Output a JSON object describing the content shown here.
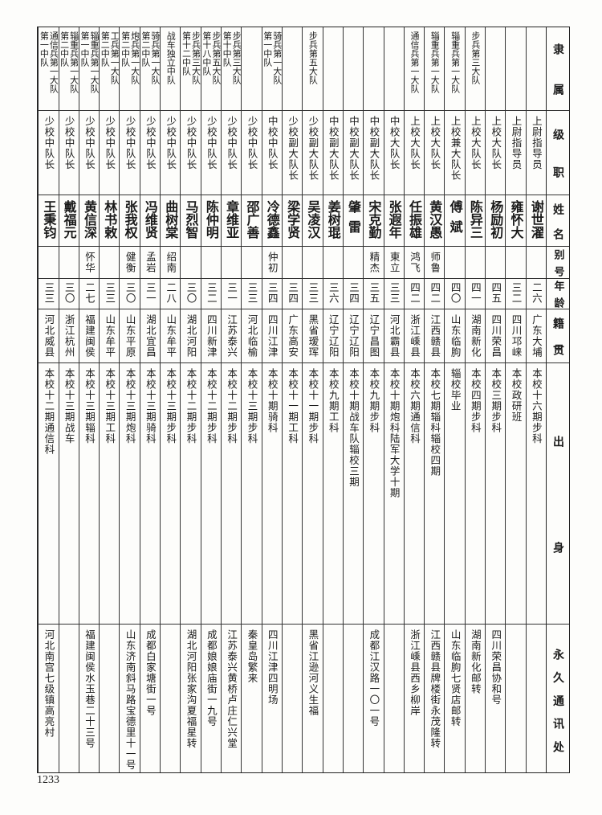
{
  "header": [
    "隶属",
    "级职",
    "姓名",
    "别号",
    "年龄",
    "籍贯",
    "出身",
    "永久通讯处"
  ],
  "records": [
    {
      "unit": [],
      "rank": "上尉指导员",
      "name": "谢世濯",
      "alias": "",
      "age": "二六",
      "native": "广东大埔",
      "education": "本校十六期步科",
      "address": ""
    },
    {
      "unit": [],
      "rank": "上尉指导员",
      "name": "雍怀大",
      "alias": "",
      "age": "三二",
      "native": "四川邛崃",
      "education": "本校政研班",
      "address": ""
    },
    {
      "unit": [],
      "rank": "上校大队长",
      "name": "杨励初",
      "alias": "",
      "age": "四五",
      "native": "四川荣昌",
      "education": "本校三期步科",
      "address": "四川荣昌协和号"
    },
    {
      "unit": [
        "步兵第三大队"
      ],
      "rank": "上校大队长",
      "name": "陈异三",
      "alias": "",
      "age": "四一",
      "native": "湖南新化",
      "education": "本校四期步科",
      "address": "湖南新化邮转"
    },
    {
      "unit": [
        "辎重兵第一大队"
      ],
      "rank": "上校兼大队长",
      "name": "傅斌",
      "alias": "",
      "age": "四〇",
      "native": "山东临朐",
      "education": "辎校毕业",
      "address": "山东临朐七贤店邮转"
    },
    {
      "unit": [
        "辎重兵第一大队"
      ],
      "rank": "上校大队长",
      "name": "黄汉愚",
      "alias": "师鲁",
      "age": "四二",
      "native": "江西赣县",
      "education": "本校七期辎科辎校四期",
      "address": "江西赣县牌楼街永茂隆转"
    },
    {
      "unit": [
        "通信兵第一大队"
      ],
      "rank": "上校大队长",
      "name": "任振雄",
      "alias": "鸿飞",
      "age": "四二",
      "native": "浙江嵊县",
      "education": "本校六期通信科",
      "address": "浙江嵊县西乡柳岸"
    },
    {
      "unit": [],
      "rank": "中校大队长",
      "name": "张遐年",
      "alias": "東立",
      "age": "三三",
      "native": "河北霸县",
      "education": "本校十期炮科陆军大学十期",
      "address": ""
    },
    {
      "unit": [],
      "rank": "中校副大队长",
      "name": "宋克勤",
      "alias": "精杰",
      "age": "三五",
      "native": "辽宁昌图",
      "education": "本校九期步科",
      "address": "成都江汉路一〇一号"
    },
    {
      "unit": [],
      "rank": "中校副大队长",
      "name": "肇雷",
      "alias": "",
      "age": "三四",
      "native": "辽宁辽阳",
      "education": "本校十期战车队辎校三期",
      "address": ""
    },
    {
      "unit": [],
      "rank": "中校副大队长",
      "name": "姜树琨",
      "alias": "",
      "age": "三六",
      "native": "辽宁辽阳",
      "education": "本校九期工科",
      "address": ""
    },
    {
      "unit": [
        "步兵第五大队"
      ],
      "rank": "少校副大队长",
      "name": "吴凌汉",
      "alias": "",
      "age": "三三",
      "native": "黑省瑷珲",
      "education": "本校十一期步科",
      "address": "黑省江逊河义生福"
    },
    {
      "unit": [],
      "rank": "少校副大队长",
      "name": "梁学贤",
      "alias": "",
      "age": "三四",
      "native": "广东高安",
      "education": "本校十一期工科",
      "address": ""
    },
    {
      "unit": [
        "骑兵第一大队",
        "第一中队"
      ],
      "rank": "中校中队长",
      "name": "冷德鑫",
      "alias": "仲初",
      "age": "三四",
      "native": "四川江津",
      "education": "本校十期骑科",
      "address": "四川江津四明场"
    },
    {
      "unit": [],
      "rank": "少校中队长",
      "name": "邵广善",
      "alias": "",
      "age": "三三",
      "native": "河北临榆",
      "education": "本校十三期步科",
      "address": "秦皇岛繁来"
    },
    {
      "unit": [
        "步兵第三大队",
        "第十中队"
      ],
      "rank": "少校中队长",
      "name": "章维亚",
      "alias": "",
      "age": "三一",
      "native": "江苏泰兴",
      "education": "本校十二期步科",
      "address": "江苏泰兴黄桥卢庄仁兴堂"
    },
    {
      "unit": [
        "步兵第五大队",
        "第十八中队"
      ],
      "rank": "少校中队长",
      "name": "陈仲明",
      "alias": "",
      "age": "三二",
      "native": "四川新津",
      "education": "本校十二期步科",
      "address": "成都娘娘庙街一九号"
    },
    {
      "unit": [
        "步兵第三大队",
        "第十二中队"
      ],
      "rank": "少校中队长",
      "name": "马烈智",
      "alias": "",
      "age": "三〇",
      "native": "湖北河阳",
      "education": "本校十二期步科",
      "address": "湖北河阳张家沟夏福星转"
    },
    {
      "unit": [
        "战车独立中队"
      ],
      "rank": "少校中队长",
      "name": "曲树棠",
      "alias": "绍南",
      "age": "二八",
      "native": "山东牟平",
      "education": "本校十三期步科",
      "address": ""
    },
    {
      "unit": [
        "骑兵第一大队",
        "第二中队"
      ],
      "rank": "少校中队长",
      "name": "冯维贤",
      "alias": "孟岩",
      "age": "三一",
      "native": "湖北宜昌",
      "education": "本校十三期骑科",
      "address": "成都白家塘街一号"
    },
    {
      "unit": [
        "炮兵第一大队",
        "第二中队"
      ],
      "rank": "少校中队长",
      "name": "张我权",
      "alias": "健衡",
      "age": "三〇",
      "native": "山东平原",
      "education": "本校十三期炮科",
      "address": "山东济南斜马路宝德里十一号"
    },
    {
      "unit": [
        "工兵第一大队",
        "第二中队"
      ],
      "rank": "少校中队长",
      "name": "林书敕",
      "alias": "",
      "age": "三三",
      "native": "山东牟平",
      "education": "本校十三期工科",
      "address": ""
    },
    {
      "unit": [
        "辎重兵第一大队",
        "第一中队"
      ],
      "rank": "少校中队长",
      "name": "黄信深",
      "alias": "怀华",
      "age": "二七",
      "native": "福建闽侯",
      "education": "本校十三期辎科",
      "address": "福建闽侯水玉巷二十三号"
    },
    {
      "unit": [
        "辎重兵第一大队",
        "第二中队"
      ],
      "rank": "少校中队长",
      "name": "戴福元",
      "alias": "",
      "age": "三〇",
      "native": "浙江杭州",
      "education": "本校十三期战车",
      "address": ""
    },
    {
      "unit": [
        "通信兵第一大队",
        "第一中队"
      ],
      "rank": "少校中队长",
      "name": "王秉钧",
      "alias": "",
      "age": "三三",
      "native": "河北威县",
      "education": "本校十二期通信科",
      "address": "河北南宫七级镇高亮村"
    }
  ],
  "page_number": "1233"
}
